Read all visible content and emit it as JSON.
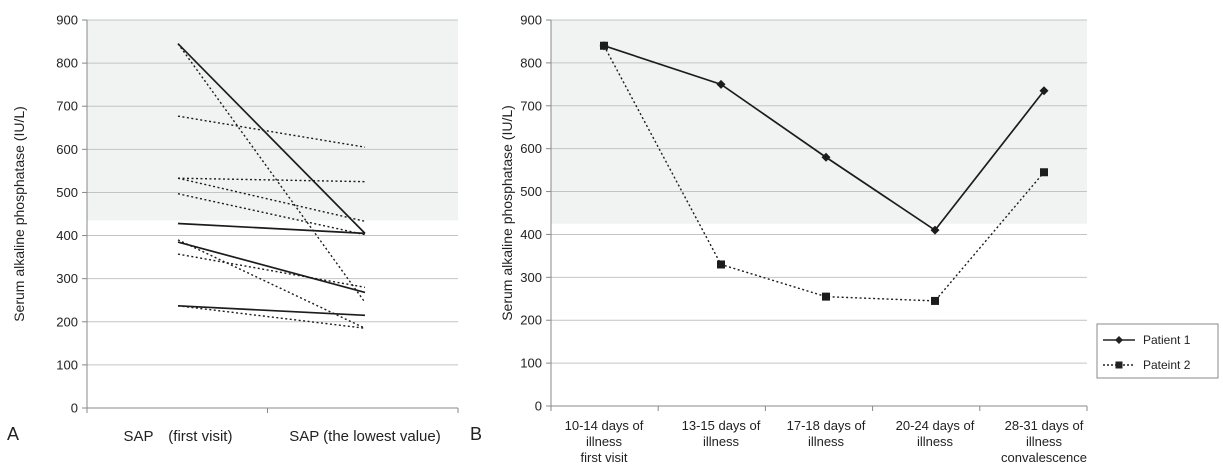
{
  "chart_data": [
    {
      "panel": "A",
      "type": "line",
      "ylabel": "Serum alkaline phosphatase (IU/L)",
      "xlabel": "",
      "ylim": [
        0,
        900
      ],
      "yticks": [
        0,
        100,
        200,
        300,
        400,
        500,
        600,
        700,
        800,
        900
      ],
      "categories": [
        "SAP　(first visit)",
        "SAP (the lowest value)"
      ],
      "shaded_range": [
        435,
        900
      ],
      "grid": true,
      "series": [
        {
          "style": "solid",
          "values": [
            845,
            405
          ]
        },
        {
          "style": "solid",
          "values": [
            428,
            405
          ]
        },
        {
          "style": "solid",
          "values": [
            385,
            268
          ]
        },
        {
          "style": "solid",
          "values": [
            237,
            215
          ]
        },
        {
          "style": "dotted",
          "values": [
            845,
            245
          ]
        },
        {
          "style": "dotted",
          "values": [
            677,
            605
          ]
        },
        {
          "style": "dotted",
          "values": [
            533,
            525
          ]
        },
        {
          "style": "dotted",
          "values": [
            533,
            433
          ]
        },
        {
          "style": "dotted",
          "values": [
            497,
            402
          ]
        },
        {
          "style": "dotted",
          "values": [
            390,
            185
          ]
        },
        {
          "style": "dotted",
          "values": [
            357,
            280
          ]
        },
        {
          "style": "dotted",
          "values": [
            237,
            185
          ]
        }
      ]
    },
    {
      "panel": "B",
      "type": "line",
      "ylabel": "Serum alkaline phosphatase (IU/L)",
      "xlabel": "",
      "ylim": [
        0,
        900
      ],
      "yticks": [
        0,
        100,
        200,
        300,
        400,
        500,
        600,
        700,
        800,
        900
      ],
      "categories": [
        [
          "10-14 days of",
          "illness",
          "first visit"
        ],
        [
          "13-15 days of",
          "illness"
        ],
        [
          "17-18 days of",
          "illness"
        ],
        [
          "20-24 days of",
          "illness"
        ],
        [
          "28-31 days of",
          "illness",
          "convalescence"
        ]
      ],
      "shaded_range": [
        425,
        900
      ],
      "grid": true,
      "legend_position": "right",
      "series": [
        {
          "name": "Patient 1",
          "style": "solid",
          "marker": "diamond",
          "values": [
            840,
            750,
            580,
            410,
            735
          ]
        },
        {
          "name": "Pateint 2",
          "style": "dotted",
          "marker": "square",
          "values": [
            840,
            330,
            255,
            245,
            545
          ]
        }
      ]
    }
  ]
}
